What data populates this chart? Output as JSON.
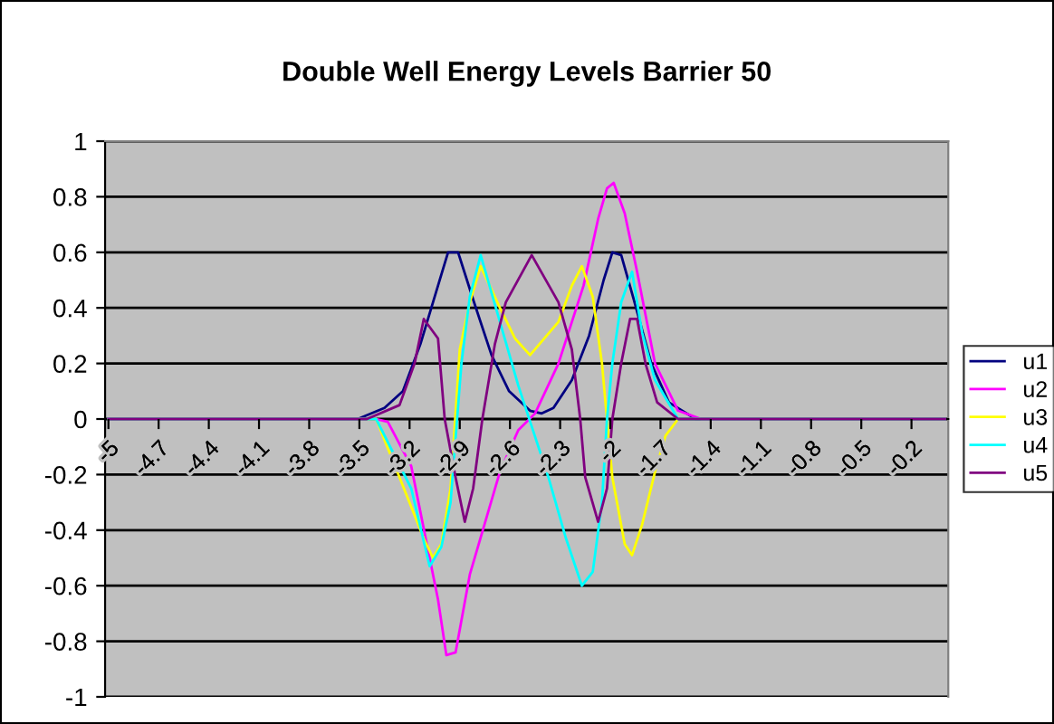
{
  "chart_data": {
    "type": "line",
    "title": "Double Well Energy Levels Barrier 50",
    "xlim": [
      -5.02,
      0.02
    ],
    "xticks": [
      -5,
      -4.7,
      -4.4,
      -4.1,
      -3.8,
      -3.5,
      -3.2,
      -2.9,
      -2.6,
      -2.3,
      -2,
      -1.7,
      -1.4,
      -1.1,
      -0.8,
      -0.5,
      -0.2
    ],
    "ylim": [
      -1,
      1
    ],
    "yticks": [
      -1,
      -0.8,
      -0.6,
      -0.4,
      -0.2,
      0,
      0.2,
      0.4,
      0.6,
      0.8,
      1
    ],
    "grid": "y",
    "legend": "right",
    "marker": "none",
    "line_style": "solid",
    "series": [
      {
        "name": "u1",
        "color": "#000080",
        "x": [
          -5,
          -3.51,
          -3.35,
          -3.24,
          -3.135,
          -3.03,
          -2.97,
          -2.91,
          -2.82,
          -2.71,
          -2.605,
          -2.48,
          -2.41,
          -2.34,
          -2.23,
          -2.127,
          -2.04,
          -1.988,
          -1.935,
          -1.86,
          -1.755,
          -1.65,
          -1.49,
          0
        ],
        "values": [
          0,
          0,
          0.04,
          0.1,
          0.27,
          0.48,
          0.6,
          0.6,
          0.43,
          0.23,
          0.1,
          0.03,
          0.02,
          0.04,
          0.14,
          0.3,
          0.5,
          0.6,
          0.59,
          0.43,
          0.2,
          0.06,
          0,
          0
        ]
      },
      {
        "name": "u2",
        "color": "#ff00ff",
        "x": [
          -5,
          -3.4,
          -3.33,
          -3.19,
          -3.08,
          -3.03,
          -2.98,
          -2.925,
          -2.84,
          -2.66,
          -2.55,
          -2.45,
          -2.31,
          -2.16,
          -2.073,
          -2.02,
          -1.98,
          -1.914,
          -1.84,
          -1.733,
          -1.595,
          -1.457,
          0
        ],
        "values": [
          0,
          0,
          -0.01,
          -0.17,
          -0.5,
          -0.65,
          -0.85,
          -0.84,
          -0.56,
          -0.19,
          -0.04,
          0.02,
          0.2,
          0.48,
          0.72,
          0.83,
          0.85,
          0.74,
          0.53,
          0.2,
          0.03,
          0,
          0
        ]
      },
      {
        "name": "u3",
        "color": "#ffff00",
        "x": [
          -5,
          -3.4,
          -3.26,
          -3.115,
          -3.06,
          -3.01,
          -2.955,
          -2.9,
          -2.84,
          -2.775,
          -2.66,
          -2.57,
          -2.48,
          -2.31,
          -2.23,
          -2.17,
          -2.105,
          -2.05,
          -2.02,
          -1.988,
          -1.914,
          -1.87,
          -1.81,
          -1.733,
          -1.67,
          -1.595,
          0
        ],
        "values": [
          0,
          0,
          -0.21,
          -0.43,
          -0.5,
          -0.45,
          -0.25,
          0.25,
          0.42,
          0.55,
          0.4,
          0.29,
          0.23,
          0.35,
          0.48,
          0.55,
          0.44,
          0.2,
          0,
          -0.21,
          -0.45,
          -0.49,
          -0.38,
          -0.19,
          -0.06,
          0,
          0
        ]
      },
      {
        "name": "u4",
        "color": "#00ffff",
        "x": [
          -5,
          -3.4,
          -3.19,
          -3.08,
          -3.01,
          -2.955,
          -2.89,
          -2.84,
          -2.775,
          -2.66,
          -2.55,
          -2.37,
          -2.265,
          -2.17,
          -2.105,
          -2.05,
          -2.02,
          -1.988,
          -1.935,
          -1.87,
          -1.81,
          -1.733,
          -1.595,
          0
        ],
        "values": [
          0,
          0,
          -0.25,
          -0.53,
          -0.46,
          -0.3,
          0.2,
          0.44,
          0.59,
          0.35,
          0.12,
          -0.21,
          -0.43,
          -0.6,
          -0.55,
          -0.3,
          0,
          0.2,
          0.42,
          0.53,
          0.31,
          0.14,
          0,
          0
        ]
      },
      {
        "name": "u5",
        "color": "#800080",
        "x": [
          -5,
          -3.455,
          -3.26,
          -3.17,
          -3.115,
          -3.03,
          -2.99,
          -2.925,
          -2.87,
          -2.82,
          -2.765,
          -2.69,
          -2.625,
          -2.47,
          -2.31,
          -2.23,
          -2.18,
          -2.15,
          -2.073,
          -2.02,
          -1.988,
          -1.935,
          -1.882,
          -1.84,
          -1.79,
          -1.72,
          -1.595,
          0
        ],
        "values": [
          0,
          0,
          0.05,
          0.2,
          0.36,
          0.29,
          0,
          -0.21,
          -0.37,
          -0.25,
          0,
          0.27,
          0.42,
          0.59,
          0.42,
          0.25,
          0,
          -0.21,
          -0.37,
          -0.25,
          0,
          0.2,
          0.36,
          0.36,
          0.2,
          0.06,
          0,
          0
        ]
      }
    ]
  }
}
